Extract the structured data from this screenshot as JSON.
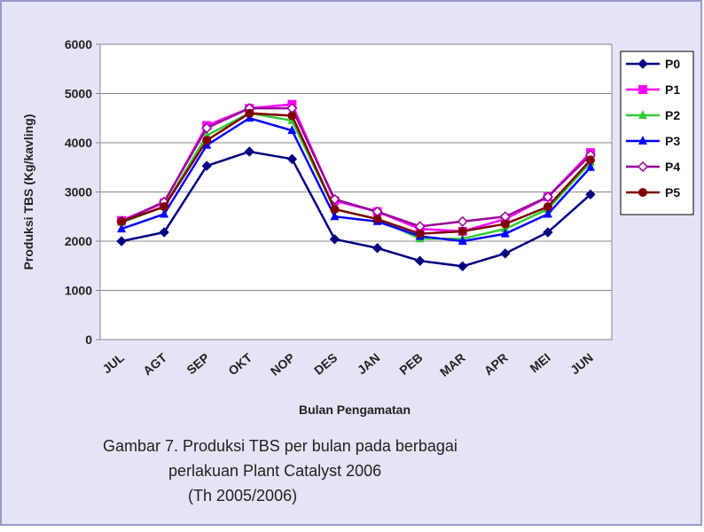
{
  "chart_data": {
    "type": "line",
    "categories": [
      "JUL",
      "AGT",
      "SEP",
      "OKT",
      "NOP",
      "DES",
      "JAN",
      "PEB",
      "MAR",
      "APR",
      "MEI",
      "JUN"
    ],
    "y_label": "Produksi TBS (Kg/kavling)",
    "x_label": "Bulan Pengamatan",
    "caption": [
      "Gambar 7. Produksi TBS per bulan pada berbagai",
      "perlakuan Plant Catalyst 2006",
      "(Th 2005/2006)"
    ],
    "ylim": [
      0,
      6000
    ],
    "yticks": [
      0,
      1000,
      2000,
      3000,
      4000,
      5000,
      6000
    ],
    "grid": true,
    "legend": "right",
    "series": [
      {
        "name": "P0",
        "color": "#000080",
        "marker": "diamond",
        "values": [
          2000,
          2180,
          3530,
          3820,
          3670,
          2040,
          1860,
          1600,
          1490,
          1750,
          2180,
          2950
        ]
      },
      {
        "name": "P1",
        "color": "#ff00ff",
        "marker": "square",
        "values": [
          2420,
          2780,
          4350,
          4700,
          4780,
          2820,
          2600,
          2250,
          2200,
          2450,
          2900,
          3800
        ]
      },
      {
        "name": "P2",
        "color": "#33cc33",
        "marker": "triangle",
        "values": [
          2380,
          2700,
          4150,
          4600,
          4450,
          2650,
          2450,
          2050,
          2050,
          2250,
          2650,
          3600
        ]
      },
      {
        "name": "P3",
        "color": "#0000ff",
        "marker": "triangle",
        "values": [
          2250,
          2550,
          3950,
          4500,
          4250,
          2500,
          2400,
          2100,
          2000,
          2150,
          2550,
          3500
        ]
      },
      {
        "name": "P4",
        "color": "#990099",
        "marker": "hollow-diamond",
        "values": [
          2400,
          2800,
          4300,
          4700,
          4700,
          2850,
          2600,
          2300,
          2400,
          2500,
          2900,
          3750
        ]
      },
      {
        "name": "P5",
        "color": "#800000",
        "marker": "circle",
        "values": [
          2400,
          2700,
          4050,
          4600,
          4550,
          2650,
          2450,
          2150,
          2200,
          2350,
          2700,
          3650
        ]
      }
    ]
  }
}
